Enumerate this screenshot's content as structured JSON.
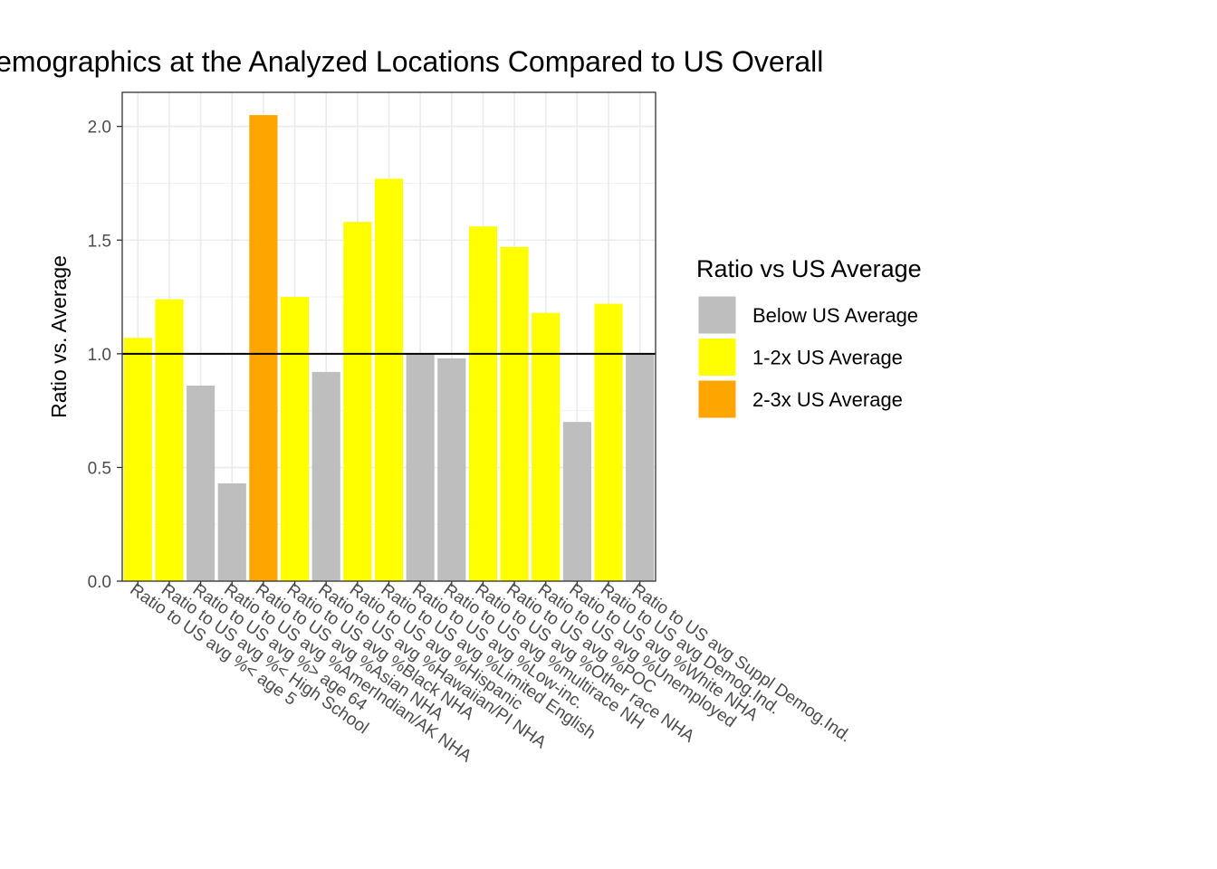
{
  "chart_data": {
    "type": "bar",
    "title": "Demographics at the Analyzed Locations Compared to US Overall",
    "xlabel": "",
    "ylabel": "Ratio vs. Average",
    "ylim": [
      0,
      2.15
    ],
    "yticks": [
      "0.0",
      "0.5",
      "1.0",
      "1.5",
      "2.0"
    ],
    "reference_line": 1.0,
    "grid": true,
    "legend_position": "right",
    "legend_title": "Ratio vs US Average",
    "legend": [
      {
        "key": "below",
        "label": "Below US Average",
        "color": "#BEBEBE"
      },
      {
        "key": "one_two",
        "label": "1-2x US Average",
        "color": "#FFFF00"
      },
      {
        "key": "two_three",
        "label": "2-3x US Average",
        "color": "#FFA500"
      }
    ],
    "categories": [
      "Ratio to US avg %< age 5",
      "Ratio to US avg %< High School",
      "Ratio to US avg %> age 64",
      "Ratio to US avg %AmerIndian/AK NHA",
      "Ratio to US avg %Asian NHA",
      "Ratio to US avg %Black NHA",
      "Ratio to US avg %Hawaiian/PI NHA",
      "Ratio to US avg %Hispanic",
      "Ratio to US avg %Limited English",
      "Ratio to US avg %Low-inc.",
      "Ratio to US avg %multirace NH",
      "Ratio to US avg %Other race NHA",
      "Ratio to US avg %POC",
      "Ratio to US avg %Unemployed",
      "Ratio to US avg %White NHA",
      "Ratio to US avg Demog.Ind.",
      "Ratio to US avg Suppl Demog.Ind."
    ],
    "values": [
      1.07,
      1.24,
      0.86,
      0.43,
      2.05,
      1.25,
      0.92,
      1.58,
      1.77,
      1.0,
      0.98,
      1.56,
      1.47,
      1.18,
      0.7,
      1.22,
      1.0
    ],
    "groups": [
      "one_two",
      "one_two",
      "below",
      "below",
      "two_three",
      "one_two",
      "below",
      "one_two",
      "one_two",
      "below",
      "below",
      "one_two",
      "one_two",
      "one_two",
      "below",
      "one_two",
      "below"
    ]
  }
}
